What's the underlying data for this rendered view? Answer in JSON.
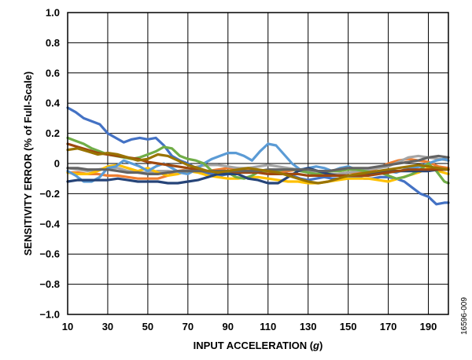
{
  "chart_data": {
    "type": "line",
    "xlabel_main": "INPUT ACCELERATION (",
    "xlabel_unit": "g",
    "xlabel_close": ")",
    "ylabel": "SENSITIVITY ERROR (% of Full-Scale)",
    "figure_id": "16596-009",
    "xlim": [
      10,
      200
    ],
    "ylim": [
      -1.0,
      1.0
    ],
    "x_ticks": [
      10,
      30,
      50,
      70,
      90,
      110,
      130,
      150,
      170,
      190
    ],
    "x_tick_labels": [
      "10",
      "30",
      "50",
      "70",
      "90",
      "110",
      "130",
      "150",
      "170",
      "190"
    ],
    "x_grid": [
      10,
      30,
      50,
      70,
      90,
      110,
      130,
      150,
      170,
      190,
      200
    ],
    "y_ticks": [
      -1.0,
      -0.8,
      -0.6,
      -0.4,
      -0.2,
      0,
      0.2,
      0.4,
      0.6,
      0.8,
      1.0
    ],
    "y_tick_labels": [
      "−1.0",
      "−0.8",
      "−0.6",
      "−0.4",
      "−0.2",
      "0",
      "0.2",
      "0.4",
      "0.6",
      "0.8",
      "1.0"
    ],
    "grid": true,
    "series": [
      {
        "color": "#4472c4",
        "x": [
          10,
          14,
          18,
          22,
          26,
          30,
          34,
          38,
          42,
          46,
          50,
          54,
          58,
          62,
          66,
          70,
          74,
          78,
          82,
          86,
          90,
          94,
          98,
          102,
          106,
          110,
          114,
          118,
          122,
          126,
          130,
          134,
          138,
          142,
          146,
          150,
          154,
          158,
          162,
          166,
          170,
          174,
          178,
          182,
          186,
          190,
          194,
          198,
          200
        ],
        "y": [
          0.37,
          0.34,
          0.3,
          0.28,
          0.26,
          0.2,
          0.17,
          0.14,
          0.16,
          0.17,
          0.16,
          0.17,
          0.12,
          0.05,
          0.02,
          0.0,
          -0.03,
          -0.06,
          -0.07,
          -0.08,
          -0.07,
          -0.06,
          -0.05,
          -0.05,
          -0.06,
          -0.07,
          -0.06,
          -0.06,
          -0.08,
          -0.1,
          -0.11,
          -0.1,
          -0.09,
          -0.1,
          -0.1,
          -0.09,
          -0.09,
          -0.1,
          -0.1,
          -0.09,
          -0.09,
          -0.1,
          -0.12,
          -0.16,
          -0.2,
          -0.22,
          -0.27,
          -0.26,
          -0.26
        ]
      },
      {
        "color": "#ed7d31",
        "x": [
          10,
          15,
          20,
          25,
          30,
          35,
          40,
          45,
          50,
          55,
          60,
          65,
          70,
          75,
          80,
          85,
          90,
          95,
          100,
          105,
          110,
          115,
          120,
          125,
          130,
          135,
          140,
          145,
          150,
          155,
          160,
          165,
          170,
          175,
          180,
          185,
          190,
          195,
          200
        ],
        "y": [
          -0.06,
          -0.06,
          -0.07,
          -0.07,
          -0.08,
          -0.08,
          -0.09,
          -0.1,
          -0.1,
          -0.1,
          -0.08,
          -0.05,
          -0.04,
          -0.05,
          -0.05,
          -0.04,
          -0.03,
          -0.03,
          -0.04,
          -0.05,
          -0.06,
          -0.06,
          -0.05,
          -0.04,
          -0.05,
          -0.07,
          -0.08,
          -0.07,
          -0.06,
          -0.06,
          -0.05,
          -0.03,
          0.0,
          0.02,
          0.03,
          0.02,
          0.01,
          -0.02,
          -0.03
        ]
      },
      {
        "color": "#a5a5a5",
        "x": [
          10,
          15,
          20,
          25,
          30,
          35,
          40,
          45,
          50,
          55,
          60,
          65,
          70,
          75,
          80,
          85,
          90,
          95,
          100,
          105,
          110,
          115,
          120,
          125,
          130,
          135,
          140,
          145,
          150,
          155,
          160,
          165,
          170,
          175,
          180,
          185,
          190,
          195,
          200
        ],
        "y": [
          -0.03,
          -0.04,
          -0.05,
          -0.04,
          -0.03,
          -0.03,
          -0.05,
          -0.06,
          -0.06,
          -0.05,
          -0.05,
          -0.06,
          -0.04,
          -0.02,
          -0.01,
          -0.01,
          -0.02,
          -0.03,
          -0.03,
          -0.02,
          -0.01,
          -0.02,
          -0.03,
          -0.04,
          -0.05,
          -0.06,
          -0.07,
          -0.07,
          -0.06,
          -0.05,
          -0.04,
          -0.03,
          -0.02,
          0.01,
          0.04,
          0.05,
          0.04,
          0.03,
          0.02
        ]
      },
      {
        "color": "#ffc000",
        "x": [
          10,
          15,
          20,
          25,
          30,
          35,
          40,
          45,
          50,
          55,
          60,
          65,
          70,
          75,
          80,
          85,
          90,
          95,
          100,
          105,
          110,
          115,
          120,
          125,
          130,
          135,
          140,
          145,
          150,
          155,
          160,
          165,
          170,
          175,
          180,
          185,
          190,
          195,
          200
        ],
        "y": [
          -0.06,
          -0.07,
          -0.07,
          -0.05,
          -0.02,
          -0.01,
          -0.03,
          -0.05,
          -0.03,
          -0.06,
          -0.08,
          -0.07,
          -0.05,
          -0.06,
          -0.08,
          -0.09,
          -0.1,
          -0.1,
          -0.09,
          -0.09,
          -0.1,
          -0.11,
          -0.12,
          -0.12,
          -0.13,
          -0.13,
          -0.12,
          -0.11,
          -0.1,
          -0.1,
          -0.1,
          -0.11,
          -0.12,
          -0.1,
          -0.08,
          -0.06,
          -0.03,
          -0.05,
          -0.07
        ]
      },
      {
        "color": "#5b9bd5",
        "x": [
          10,
          14,
          18,
          22,
          26,
          30,
          34,
          38,
          42,
          46,
          50,
          54,
          58,
          62,
          66,
          70,
          74,
          78,
          82,
          86,
          90,
          94,
          98,
          102,
          106,
          110,
          114,
          118,
          122,
          126,
          130,
          134,
          138,
          142,
          146,
          150,
          154,
          158,
          162,
          166,
          170,
          174,
          178,
          182,
          186,
          190,
          194,
          198,
          200
        ],
        "y": [
          -0.05,
          -0.08,
          -0.12,
          -0.12,
          -0.09,
          -0.03,
          -0.02,
          0.02,
          0.0,
          -0.02,
          -0.05,
          -0.02,
          0.0,
          -0.03,
          -0.06,
          -0.07,
          -0.04,
          0.0,
          0.03,
          0.05,
          0.07,
          0.07,
          0.05,
          0.02,
          0.08,
          0.13,
          0.12,
          0.06,
          0.0,
          -0.04,
          -0.03,
          -0.02,
          -0.03,
          -0.05,
          -0.03,
          -0.02,
          -0.04,
          -0.05,
          -0.06,
          -0.05,
          -0.05,
          -0.06,
          -0.04,
          -0.03,
          -0.02,
          0.0,
          0.02,
          0.03,
          0.02
        ]
      },
      {
        "color": "#70ad47",
        "x": [
          10,
          14,
          18,
          22,
          26,
          30,
          34,
          38,
          42,
          46,
          50,
          54,
          58,
          62,
          66,
          70,
          74,
          78,
          82,
          86,
          90,
          94,
          98,
          102,
          106,
          110,
          114,
          118,
          122,
          126,
          130,
          134,
          138,
          142,
          146,
          150,
          154,
          158,
          162,
          166,
          170,
          174,
          178,
          182,
          186,
          190,
          194,
          198,
          200
        ],
        "y": [
          0.17,
          0.15,
          0.13,
          0.1,
          0.08,
          0.06,
          0.05,
          0.04,
          0.03,
          0.04,
          0.06,
          0.08,
          0.11,
          0.1,
          0.05,
          0.03,
          0.02,
          0.0,
          -0.05,
          -0.07,
          -0.06,
          -0.09,
          -0.1,
          -0.08,
          -0.05,
          -0.05,
          -0.05,
          -0.04,
          -0.04,
          -0.05,
          -0.06,
          -0.07,
          -0.06,
          -0.05,
          -0.05,
          -0.04,
          -0.04,
          -0.05,
          -0.06,
          -0.06,
          -0.08,
          -0.1,
          -0.09,
          -0.07,
          -0.04,
          0.0,
          -0.05,
          -0.12,
          -0.13
        ]
      },
      {
        "color": "#264478",
        "x": [
          10,
          15,
          20,
          25,
          30,
          35,
          40,
          45,
          50,
          55,
          60,
          65,
          70,
          75,
          80,
          85,
          90,
          95,
          100,
          105,
          110,
          115,
          120,
          125,
          130,
          135,
          140,
          145,
          150,
          155,
          160,
          165,
          170,
          175,
          180,
          185,
          190,
          195,
          200
        ],
        "y": [
          -0.12,
          -0.11,
          -0.11,
          -0.11,
          -0.11,
          -0.1,
          -0.11,
          -0.12,
          -0.12,
          -0.12,
          -0.13,
          -0.13,
          -0.12,
          -0.11,
          -0.09,
          -0.07,
          -0.07,
          -0.07,
          -0.1,
          -0.11,
          -0.13,
          -0.13,
          -0.09,
          -0.05,
          -0.03,
          -0.05,
          -0.07,
          -0.08,
          -0.08,
          -0.08,
          -0.07,
          -0.06,
          -0.05,
          -0.05,
          -0.05,
          -0.05,
          -0.05,
          -0.04,
          -0.04
        ]
      },
      {
        "color": "#9e480e",
        "x": [
          10,
          15,
          20,
          25,
          30,
          35,
          40,
          45,
          50,
          55,
          60,
          65,
          70,
          75,
          80,
          85,
          90,
          95,
          100,
          105,
          110,
          115,
          120,
          125,
          130,
          135,
          140,
          145,
          150,
          155,
          160,
          165,
          170,
          175,
          180,
          185,
          190,
          195,
          200
        ],
        "y": [
          0.13,
          0.11,
          0.09,
          0.07,
          0.06,
          0.05,
          0.04,
          0.03,
          0.01,
          0.0,
          -0.01,
          -0.02,
          -0.03,
          -0.04,
          -0.05,
          -0.05,
          -0.05,
          -0.06,
          -0.06,
          -0.06,
          -0.07,
          -0.07,
          -0.07,
          -0.07,
          -0.08,
          -0.08,
          -0.08,
          -0.08,
          -0.08,
          -0.08,
          -0.08,
          -0.07,
          -0.06,
          -0.05,
          -0.04,
          -0.04,
          -0.04,
          -0.04,
          -0.04
        ]
      },
      {
        "color": "#636363",
        "x": [
          10,
          15,
          20,
          25,
          30,
          35,
          40,
          45,
          50,
          55,
          60,
          65,
          70,
          75,
          80,
          85,
          90,
          95,
          100,
          105,
          110,
          115,
          120,
          125,
          130,
          135,
          140,
          145,
          150,
          155,
          160,
          165,
          170,
          175,
          180,
          185,
          190,
          195,
          200
        ],
        "y": [
          -0.03,
          -0.03,
          -0.04,
          -0.04,
          -0.04,
          -0.05,
          -0.06,
          -0.06,
          -0.07,
          -0.07,
          -0.06,
          -0.05,
          -0.05,
          -0.05,
          -0.05,
          -0.05,
          -0.05,
          -0.05,
          -0.05,
          -0.05,
          -0.04,
          -0.04,
          -0.04,
          -0.04,
          -0.04,
          -0.05,
          -0.05,
          -0.04,
          -0.03,
          -0.03,
          -0.03,
          -0.02,
          -0.01,
          0.0,
          0.01,
          0.02,
          0.04,
          0.05,
          0.04
        ]
      },
      {
        "color": "#997300",
        "x": [
          10,
          15,
          20,
          25,
          30,
          35,
          40,
          45,
          50,
          55,
          60,
          65,
          70,
          75,
          80,
          85,
          90,
          95,
          100,
          105,
          110,
          115,
          120,
          125,
          130,
          135,
          140,
          145,
          150,
          155,
          160,
          165,
          170,
          175,
          180,
          185,
          190,
          195,
          200
        ],
        "y": [
          0.09,
          0.1,
          0.08,
          0.06,
          0.07,
          0.06,
          0.04,
          0.02,
          0.03,
          0.06,
          0.05,
          0.02,
          -0.01,
          -0.03,
          -0.05,
          -0.06,
          -0.05,
          -0.04,
          -0.03,
          -0.04,
          -0.05,
          -0.06,
          -0.08,
          -0.1,
          -0.12,
          -0.13,
          -0.12,
          -0.1,
          -0.08,
          -0.07,
          -0.06,
          -0.05,
          -0.04,
          -0.03,
          -0.02,
          -0.01,
          -0.02,
          -0.03,
          -0.04
        ]
      }
    ]
  }
}
